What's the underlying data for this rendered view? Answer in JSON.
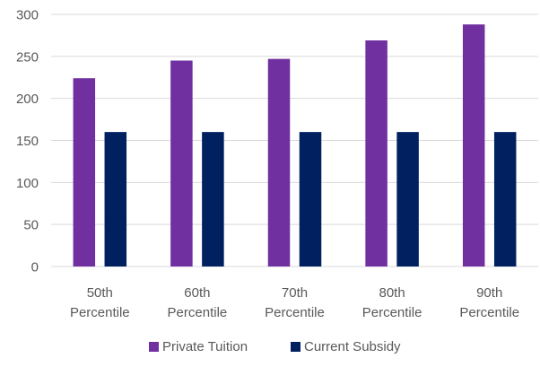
{
  "chart_data": {
    "type": "bar",
    "categories": [
      [
        "50th",
        "Percentile"
      ],
      [
        "60th",
        "Percentile"
      ],
      [
        "70th",
        "Percentile"
      ],
      [
        "80th",
        "Percentile"
      ],
      [
        "90th",
        "Percentile"
      ]
    ],
    "series": [
      {
        "name": "Private Tuition",
        "color": "#7030a0",
        "values": [
          224,
          245,
          247,
          269,
          288
        ]
      },
      {
        "name": "Current Subsidy",
        "color": "#002060",
        "values": [
          160,
          160,
          160,
          160,
          160
        ]
      }
    ],
    "ylim": [
      0,
      300
    ],
    "yticks": [
      0,
      50,
      100,
      150,
      200,
      250,
      300
    ],
    "title": "",
    "xlabel": "",
    "ylabel": "",
    "grid": true,
    "legend_position": "bottom",
    "gridline_color": "#d9d9d9",
    "text_color": "#595959"
  }
}
